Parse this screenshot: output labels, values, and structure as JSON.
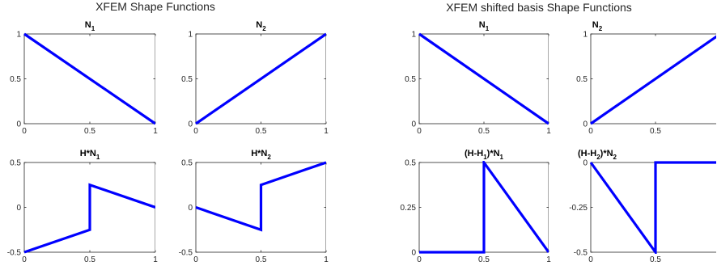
{
  "figure": {
    "titles": [
      "XFEM Shape Functions",
      "XFEM shifted basis Shape Functions"
    ]
  },
  "colors": {
    "line": "#0000ff",
    "axis": "#262626"
  },
  "chart_data": [
    {
      "type": "line",
      "title": "N",
      "title_sub": "1",
      "xlim": [
        0,
        1
      ],
      "ylim": [
        0,
        1
      ],
      "xticks": [
        "0",
        "0.5",
        "1"
      ],
      "xtick_values": [
        0,
        0.5,
        1
      ],
      "yticks": [
        "0",
        "0.5",
        "1"
      ],
      "ytick_values": [
        0,
        0.5,
        1
      ],
      "series": [
        {
          "x": [
            0,
            1
          ],
          "y": [
            1,
            0
          ]
        }
      ]
    },
    {
      "type": "line",
      "title": "N",
      "title_sub": "2",
      "xlim": [
        0,
        1
      ],
      "ylim": [
        0,
        1
      ],
      "xticks": [
        "0",
        "0.5",
        "1"
      ],
      "xtick_values": [
        0,
        0.5,
        1
      ],
      "yticks": [
        "0",
        "0.5",
        "1"
      ],
      "ytick_values": [
        0,
        0.5,
        1
      ],
      "series": [
        {
          "x": [
            0,
            1
          ],
          "y": [
            0,
            1
          ]
        }
      ]
    },
    {
      "type": "line",
      "title": "H*N",
      "title_sub": "1",
      "xlim": [
        0,
        1
      ],
      "ylim": [
        -0.5,
        0.5
      ],
      "xticks": [
        "0",
        "0.5",
        "1"
      ],
      "xtick_values": [
        0,
        0.5,
        1
      ],
      "yticks": [
        "-0.5",
        "0",
        "0.5"
      ],
      "ytick_values": [
        -0.5,
        0,
        0.5
      ],
      "series": [
        {
          "x": [
            0,
            0.5,
            0.5,
            1
          ],
          "y": [
            -0.5,
            -0.25,
            0.25,
            0
          ]
        }
      ]
    },
    {
      "type": "line",
      "title": "H*N",
      "title_sub": "2",
      "xlim": [
        0,
        1
      ],
      "ylim": [
        -0.5,
        0.5
      ],
      "xticks": [
        "0",
        "0.5",
        "1"
      ],
      "xtick_values": [
        0,
        0.5,
        1
      ],
      "yticks": [
        "-0.5",
        "0",
        "0.5"
      ],
      "ytick_values": [
        -0.5,
        0,
        0.5
      ],
      "series": [
        {
          "x": [
            0,
            0.5,
            0.5,
            1
          ],
          "y": [
            0,
            -0.25,
            0.25,
            0.5
          ]
        }
      ]
    },
    {
      "type": "line",
      "title": "N",
      "title_sub": "1",
      "xlim": [
        0,
        1
      ],
      "ylim": [
        0,
        1
      ],
      "xticks": [
        "0",
        "0.5",
        "1"
      ],
      "xtick_values": [
        0,
        0.5,
        1
      ],
      "yticks": [
        "0",
        "0.5",
        "1"
      ],
      "ytick_values": [
        0,
        0.5,
        1
      ],
      "series": [
        {
          "x": [
            0,
            1
          ],
          "y": [
            1,
            0
          ]
        }
      ]
    },
    {
      "type": "line",
      "title": "N",
      "title_sub": "2",
      "xlim": [
        0,
        1
      ],
      "ylim": [
        0,
        1
      ],
      "xticks": [
        "0",
        "0.5"
      ],
      "xtick_values": [
        0,
        0.5
      ],
      "yticks": [
        "0",
        "0.5",
        "1"
      ],
      "ytick_values": [
        0,
        0.5,
        1
      ],
      "series": [
        {
          "x": [
            0,
            1
          ],
          "y": [
            0,
            1
          ]
        }
      ]
    },
    {
      "type": "line",
      "title": "(H-H",
      "title_sub": "1",
      "title_suffix": ")*N",
      "title_sub2": "1",
      "xlim": [
        0,
        1
      ],
      "ylim": [
        0,
        0.5
      ],
      "xticks": [
        "0",
        "0.5",
        "1"
      ],
      "xtick_values": [
        0,
        0.5,
        1
      ],
      "yticks": [
        "0",
        "0.25",
        "0.5"
      ],
      "ytick_values": [
        0,
        0.25,
        0.5
      ],
      "series": [
        {
          "x": [
            0,
            0.5,
            0.5,
            1
          ],
          "y": [
            0,
            0,
            0.5,
            0
          ]
        }
      ]
    },
    {
      "type": "line",
      "title": "(H-H",
      "title_sub": "2",
      "title_suffix": ")*N",
      "title_sub2": "2",
      "xlim": [
        0,
        1
      ],
      "ylim": [
        -0.5,
        0
      ],
      "xticks": [
        "0",
        "0.5"
      ],
      "xtick_values": [
        0,
        0.5
      ],
      "yticks": [
        "-0.5",
        "-0.25",
        "0"
      ],
      "ytick_values": [
        -0.5,
        -0.25,
        0
      ],
      "series": [
        {
          "x": [
            0,
            0.5,
            0.5,
            1
          ],
          "y": [
            0,
            -0.5,
            0,
            0
          ]
        }
      ]
    }
  ]
}
